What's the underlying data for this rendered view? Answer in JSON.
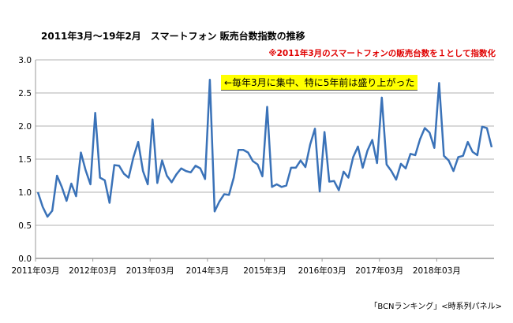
{
  "chart_data": {
    "type": "line",
    "title": "2011年3月～19年2月　スマートフォン 販売台数指数の推移",
    "note": "※2011年3月のスマートフォンの販売台数を１として指数化",
    "annotation": "←毎年3月に集中、特に5年前は盛り上がった",
    "source": "「BCNランキング」<時系列パネル>",
    "xlabel": "",
    "ylabel": "",
    "ylim": [
      0,
      3.0
    ],
    "yticks": [
      "0.0",
      "0.5",
      "1.0",
      "1.5",
      "2.0",
      "2.5",
      "3.0"
    ],
    "xticks": [
      {
        "index": 0,
        "label": "2011年03月"
      },
      {
        "index": 12,
        "label": "2012年03月"
      },
      {
        "index": 24,
        "label": "2013年03月"
      },
      {
        "index": 36,
        "label": "2014年3月"
      },
      {
        "index": 48,
        "label": "2015年3月"
      },
      {
        "index": 60,
        "label": "2016年03月"
      },
      {
        "index": 72,
        "label": "2017年03月"
      },
      {
        "index": 84,
        "label": "2018年03月"
      }
    ],
    "grid": true,
    "color": "#3a72b8",
    "x_start": "2011-03",
    "x_end": "2019-02",
    "values": [
      1.0,
      0.78,
      0.63,
      0.72,
      1.25,
      1.08,
      0.87,
      1.13,
      0.94,
      1.6,
      1.33,
      1.12,
      2.2,
      1.22,
      1.18,
      0.84,
      1.41,
      1.4,
      1.28,
      1.22,
      1.53,
      1.76,
      1.32,
      1.12,
      2.1,
      1.14,
      1.48,
      1.25,
      1.15,
      1.27,
      1.36,
      1.32,
      1.3,
      1.4,
      1.36,
      1.2,
      2.7,
      0.71,
      0.86,
      0.97,
      0.96,
      1.22,
      1.64,
      1.64,
      1.6,
      1.47,
      1.42,
      1.24,
      2.29,
      1.08,
      1.12,
      1.08,
      1.1,
      1.37,
      1.37,
      1.48,
      1.38,
      1.72,
      1.96,
      1.01,
      1.91,
      1.16,
      1.17,
      1.03,
      1.31,
      1.22,
      1.53,
      1.69,
      1.37,
      1.63,
      1.79,
      1.44,
      2.43,
      1.42,
      1.32,
      1.19,
      1.43,
      1.36,
      1.58,
      1.56,
      1.8,
      1.97,
      1.9,
      1.67,
      2.65,
      1.55,
      1.48,
      1.32,
      1.53,
      1.55,
      1.76,
      1.61,
      1.56,
      1.99,
      1.97,
      1.68
    ]
  }
}
